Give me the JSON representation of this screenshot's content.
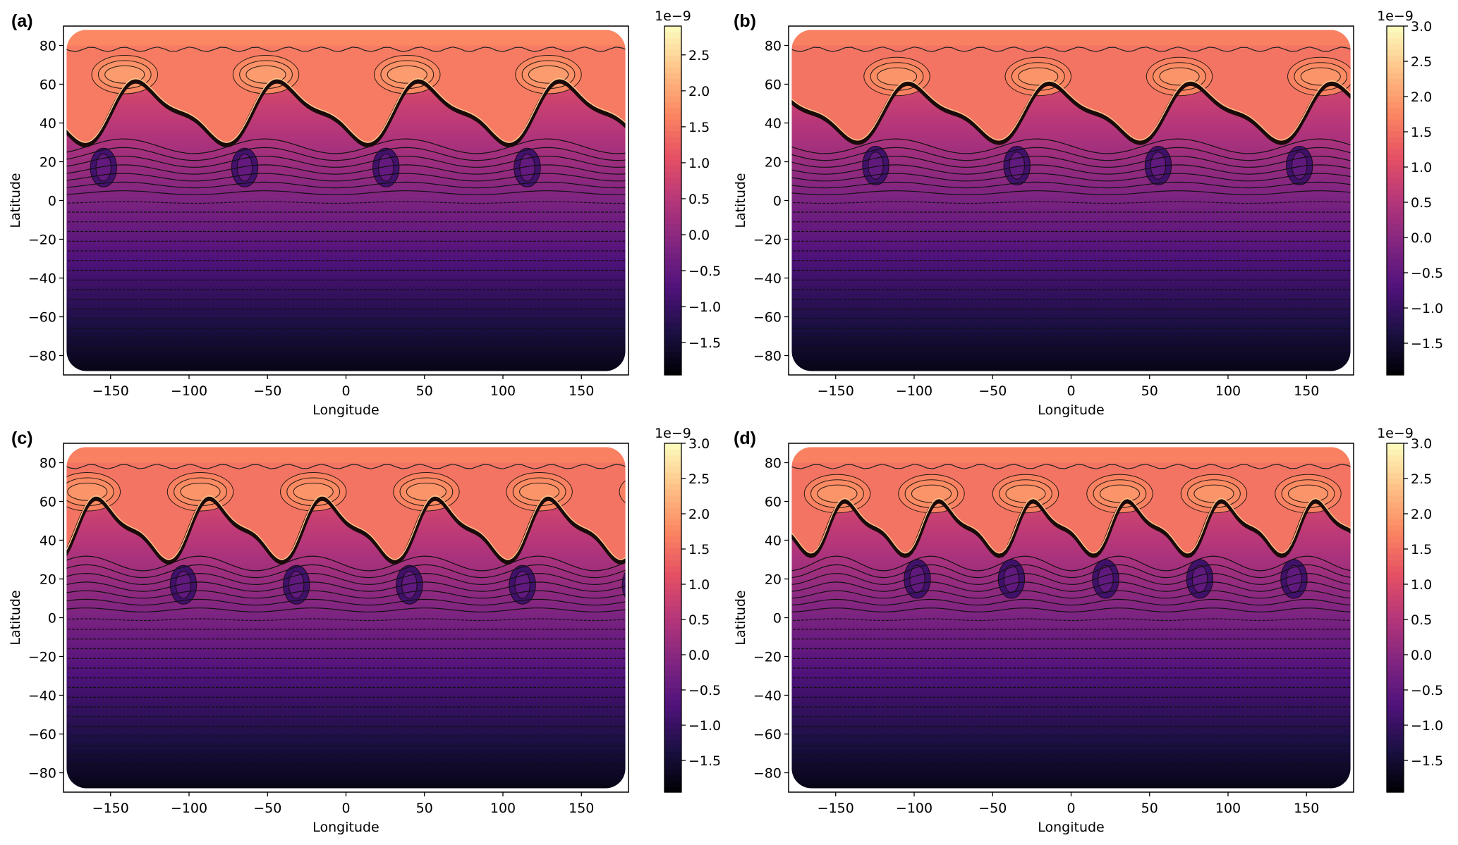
{
  "chart_data": {
    "type": "heatmap",
    "subtype": "filled contour map (magma colormap) with contour lines",
    "panels": [
      {
        "label": "(a)",
        "xlabel": "Longitude",
        "ylabel": "Latitude",
        "xlim": [
          -180,
          180
        ],
        "ylim": [
          -90,
          90
        ],
        "xticks": [
          "−150",
          "−100",
          "−50",
          "0",
          "50",
          "100",
          "150"
        ],
        "xtick_values": [
          -150,
          -100,
          -50,
          0,
          50,
          100,
          150
        ],
        "yticks": [
          "80",
          "60",
          "40",
          "20",
          "0",
          "−20",
          "−40",
          "−60",
          "−80"
        ],
        "ytick_values": [
          80,
          60,
          40,
          20,
          0,
          -20,
          -40,
          -60,
          -80
        ],
        "colorbar": {
          "multiplier": "1e−9",
          "range": [
            -1.95,
            2.9
          ],
          "ticks": [
            "2.5",
            "2.0",
            "1.5",
            "1.0",
            "0.5",
            "0.0",
            "−0.5",
            "−1.0",
            "−1.5"
          ],
          "tick_values": [
            2.5,
            2.0,
            1.5,
            1.0,
            0.5,
            0.0,
            -0.5,
            -1.0,
            -1.5
          ]
        },
        "front_mean_latitude": 45,
        "front_amplitude": 14,
        "wavenumber": 4,
        "phase": -150
      },
      {
        "label": "(b)",
        "xlabel": "Longitude",
        "ylabel": "Latitude",
        "xlim": [
          -180,
          180
        ],
        "ylim": [
          -90,
          90
        ],
        "xticks": [
          "−150",
          "−100",
          "−50",
          "0",
          "50",
          "100",
          "150"
        ],
        "xtick_values": [
          -150,
          -100,
          -50,
          0,
          50,
          100,
          150
        ],
        "yticks": [
          "80",
          "60",
          "40",
          "20",
          "0",
          "−20",
          "−40",
          "−60",
          "−80"
        ],
        "ytick_values": [
          80,
          60,
          40,
          20,
          0,
          -20,
          -40,
          -60,
          -80
        ],
        "colorbar": {
          "multiplier": "1e−9",
          "range": [
            -1.95,
            3.0
          ],
          "ticks": [
            "3.0",
            "2.5",
            "2.0",
            "1.5",
            "1.0",
            "0.5",
            "0.0",
            "−0.5",
            "−1.0",
            "−1.5"
          ],
          "tick_values": [
            3.0,
            2.5,
            2.0,
            1.5,
            1.0,
            0.5,
            0.0,
            -0.5,
            -1.0,
            -1.5
          ]
        },
        "front_mean_latitude": 45,
        "front_amplitude": 13,
        "wavenumber": 4,
        "phase": -120
      },
      {
        "label": "(c)",
        "xlabel": "Longitude",
        "ylabel": "Latitude",
        "xlim": [
          -180,
          180
        ],
        "ylim": [
          -90,
          90
        ],
        "xticks": [
          "−150",
          "−100",
          "−50",
          "0",
          "50",
          "100",
          "150"
        ],
        "xtick_values": [
          -150,
          -100,
          -50,
          0,
          50,
          100,
          150
        ],
        "yticks": [
          "80",
          "60",
          "40",
          "20",
          "0",
          "−20",
          "−40",
          "−60",
          "−80"
        ],
        "ytick_values": [
          80,
          60,
          40,
          20,
          0,
          -20,
          -40,
          -60,
          -80
        ],
        "colorbar": {
          "multiplier": "1e−9",
          "range": [
            -1.95,
            3.0
          ],
          "ticks": [
            "3.0",
            "2.5",
            "2.0",
            "1.5",
            "1.0",
            "0.5",
            "0.0",
            "−0.5",
            "−1.0",
            "−1.5"
          ],
          "tick_values": [
            3.0,
            2.5,
            2.0,
            1.5,
            1.0,
            0.5,
            0.0,
            -0.5,
            -1.0,
            -1.5
          ]
        },
        "front_mean_latitude": 45,
        "front_amplitude": 14,
        "wavenumber": 5,
        "phase": -100
      },
      {
        "label": "(d)",
        "xlabel": "Longitude",
        "ylabel": "Latitude",
        "xlim": [
          -180,
          180
        ],
        "ylim": [
          -90,
          90
        ],
        "xticks": [
          "−150",
          "−100",
          "−50",
          "0",
          "50",
          "100",
          "150"
        ],
        "xtick_values": [
          -150,
          -100,
          -50,
          0,
          50,
          100,
          150
        ],
        "yticks": [
          "80",
          "60",
          "40",
          "20",
          "0",
          "−20",
          "−40",
          "−60",
          "−80"
        ],
        "ytick_values": [
          80,
          60,
          40,
          20,
          0,
          -20,
          -40,
          -60,
          -80
        ],
        "colorbar": {
          "multiplier": "1e−9",
          "range": [
            -1.95,
            3.0
          ],
          "ticks": [
            "3.0",
            "2.5",
            "2.0",
            "1.5",
            "1.0",
            "0.5",
            "0.0",
            "−0.5",
            "−1.0",
            "−1.5"
          ],
          "tick_values": [
            3.0,
            2.5,
            2.0,
            1.5,
            1.0,
            0.5,
            0.0,
            -0.5,
            -1.0,
            -1.5
          ]
        },
        "front_mean_latitude": 46,
        "front_amplitude": 12,
        "wavenumber": 6,
        "phase": -95
      }
    ],
    "colormap": [
      "#000004",
      "#1c1044",
      "#4f127b",
      "#812581",
      "#b5367a",
      "#e55064",
      "#fb8761",
      "#fec287",
      "#fcfdbf"
    ]
  }
}
